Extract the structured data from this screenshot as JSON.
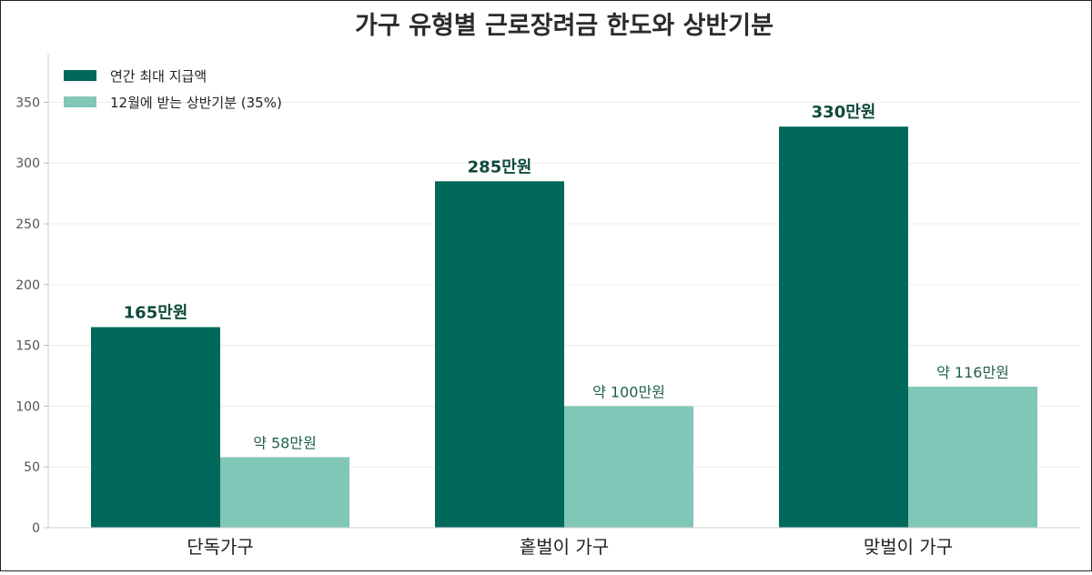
{
  "chart_data": {
    "type": "bar",
    "title": "가구 유형별 근로장려금 한도와 상반기분",
    "categories": [
      "단독가구",
      "홑벌이 가구",
      "맞벌이 가구"
    ],
    "series": [
      {
        "name": "연간 최대 지급액",
        "values": [
          165,
          285,
          330
        ],
        "labels": [
          "165만원",
          "285만원",
          "330만원"
        ],
        "color": "#00695c"
      },
      {
        "name": "12월에 받는 상반기분 (35%)",
        "values": [
          58,
          100,
          116
        ],
        "labels": [
          "약 58만원",
          "약 100만원",
          "약 116만원"
        ],
        "color": "#80c7b7"
      }
    ],
    "yticks": [
      "0",
      "50",
      "100",
      "150",
      "200",
      "250",
      "300",
      "350"
    ],
    "ylim": [
      0,
      390
    ],
    "grid": true,
    "legend_position": "top-left"
  }
}
